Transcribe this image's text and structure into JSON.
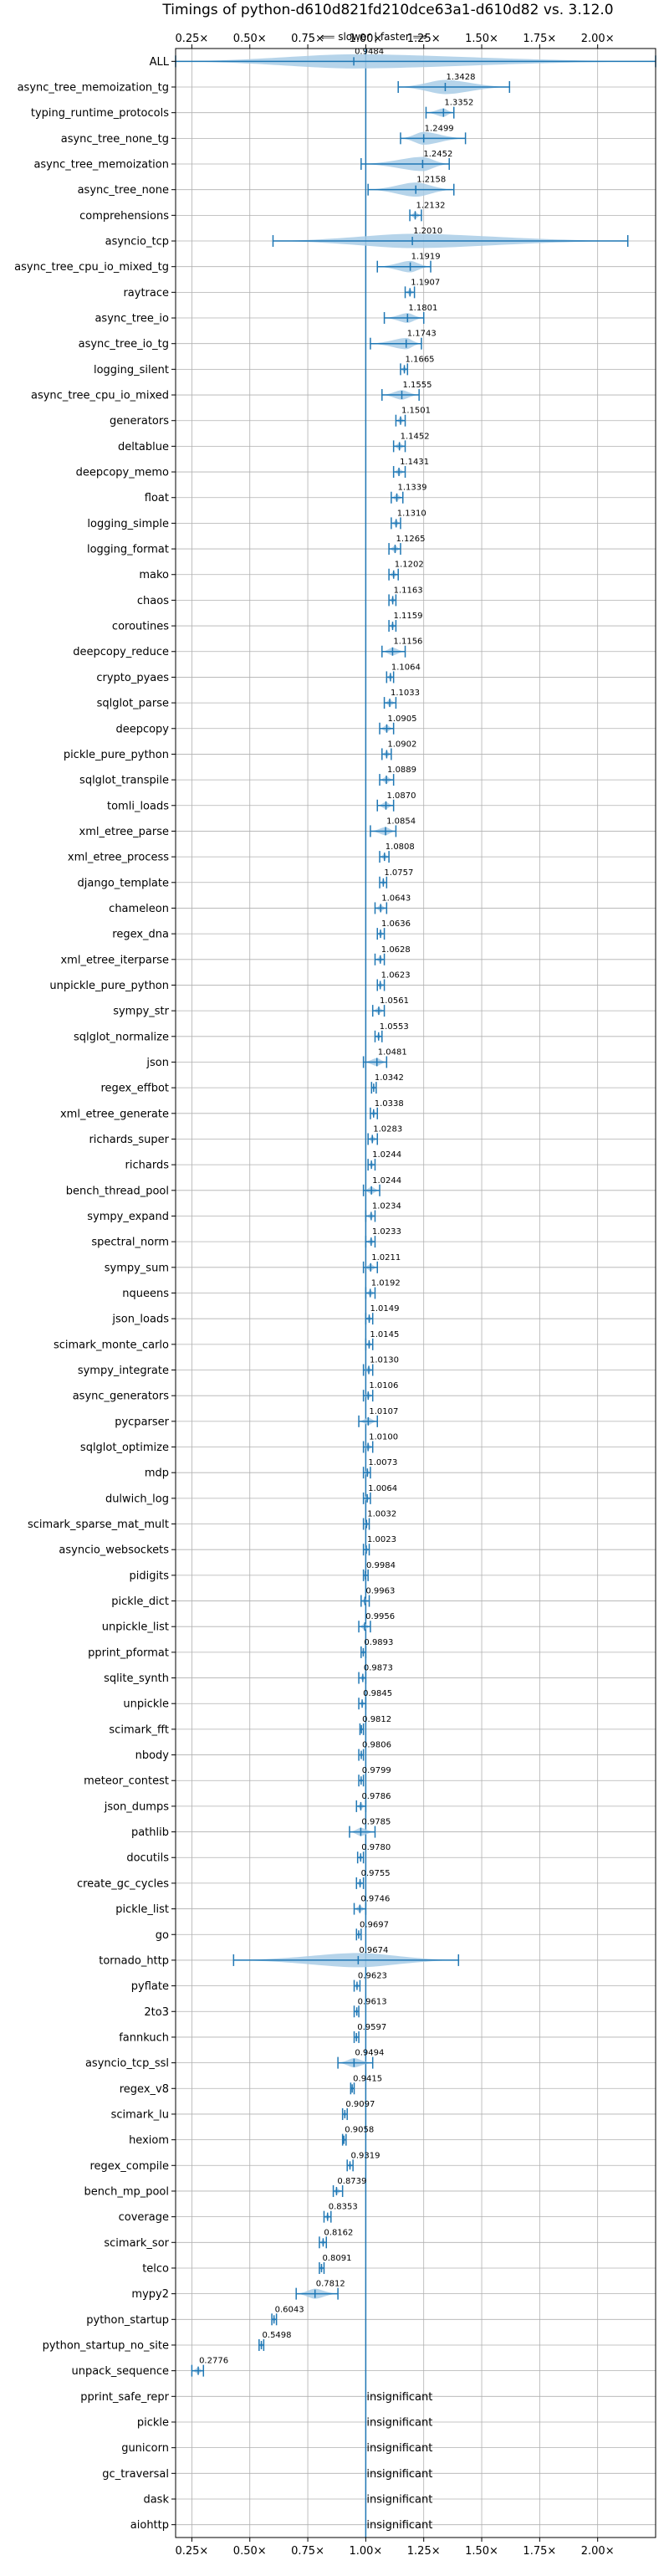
{
  "chart_data": {
    "type": "violin",
    "title": "Timings of python-d610d821fd210dce63a1-d610d82 vs. 3.12.0",
    "direction_label": "⟸ slower | faster ⟹",
    "xlim": [
      0.18,
      2.25
    ],
    "x_ticks": [
      0.25,
      0.5,
      0.75,
      1.0,
      1.25,
      1.5,
      1.75,
      2.0
    ],
    "x_tick_labels": [
      "0.25×",
      "0.50×",
      "0.75×",
      "1.00×",
      "1.25×",
      "1.50×",
      "1.75×",
      "2.00×"
    ],
    "reference_line": 1.0,
    "grid": true,
    "colors": {
      "violin": "#1f77b4",
      "violin_fill": "#a9cce6",
      "outlier": "#d62728"
    },
    "insignificant_text": "insignificant",
    "benchmarks": [
      {
        "name": "ALL",
        "median": 0.9484,
        "min": 0.18,
        "max": 2.25
      },
      {
        "name": "async_tree_memoization_tg",
        "median": 1.3428,
        "min": 1.14,
        "max": 1.62
      },
      {
        "name": "typing_runtime_protocols",
        "median": 1.3352,
        "min": 1.26,
        "max": 1.38
      },
      {
        "name": "async_tree_none_tg",
        "median": 1.2499,
        "min": 1.15,
        "max": 1.43
      },
      {
        "name": "async_tree_memoization",
        "median": 1.2452,
        "min": 0.98,
        "max": 1.36
      },
      {
        "name": "async_tree_none",
        "median": 1.2158,
        "min": 1.01,
        "max": 1.38
      },
      {
        "name": "comprehensions",
        "median": 1.2132,
        "min": 1.19,
        "max": 1.24
      },
      {
        "name": "asyncio_tcp",
        "median": 1.201,
        "min": 0.6,
        "max": 2.13
      },
      {
        "name": "async_tree_cpu_io_mixed_tg",
        "median": 1.1919,
        "min": 1.05,
        "max": 1.28
      },
      {
        "name": "raytrace",
        "median": 1.1907,
        "min": 1.17,
        "max": 1.21
      },
      {
        "name": "async_tree_io",
        "median": 1.1801,
        "min": 1.08,
        "max": 1.25
      },
      {
        "name": "async_tree_io_tg",
        "median": 1.1743,
        "min": 1.02,
        "max": 1.24
      },
      {
        "name": "logging_silent",
        "median": 1.1665,
        "min": 1.15,
        "max": 1.18
      },
      {
        "name": "async_tree_cpu_io_mixed",
        "median": 1.1555,
        "min": 1.07,
        "max": 1.23
      },
      {
        "name": "generators",
        "median": 1.1501,
        "min": 1.13,
        "max": 1.17
      },
      {
        "name": "deltablue",
        "median": 1.1452,
        "min": 1.12,
        "max": 1.17
      },
      {
        "name": "deepcopy_memo",
        "median": 1.1431,
        "min": 1.12,
        "max": 1.17
      },
      {
        "name": "float",
        "median": 1.1339,
        "min": 1.11,
        "max": 1.16
      },
      {
        "name": "logging_simple",
        "median": 1.131,
        "min": 1.11,
        "max": 1.15
      },
      {
        "name": "logging_format",
        "median": 1.1265,
        "min": 1.1,
        "max": 1.15
      },
      {
        "name": "mako",
        "median": 1.1202,
        "min": 1.1,
        "max": 1.14
      },
      {
        "name": "chaos",
        "median": 1.1163,
        "min": 1.1,
        "max": 1.13
      },
      {
        "name": "coroutines",
        "median": 1.1159,
        "min": 1.1,
        "max": 1.13
      },
      {
        "name": "deepcopy_reduce",
        "median": 1.1156,
        "min": 1.07,
        "max": 1.17
      },
      {
        "name": "crypto_pyaes",
        "median": 1.1064,
        "min": 1.09,
        "max": 1.12
      },
      {
        "name": "sqlglot_parse",
        "median": 1.1033,
        "min": 1.08,
        "max": 1.13
      },
      {
        "name": "deepcopy",
        "median": 1.0905,
        "min": 1.06,
        "max": 1.12
      },
      {
        "name": "pickle_pure_python",
        "median": 1.0902,
        "min": 1.07,
        "max": 1.11
      },
      {
        "name": "sqlglot_transpile",
        "median": 1.0889,
        "min": 1.06,
        "max": 1.12
      },
      {
        "name": "tomli_loads",
        "median": 1.087,
        "min": 1.05,
        "max": 1.12
      },
      {
        "name": "xml_etree_parse",
        "median": 1.0854,
        "min": 1.02,
        "max": 1.13
      },
      {
        "name": "xml_etree_process",
        "median": 1.0808,
        "min": 1.06,
        "max": 1.1
      },
      {
        "name": "django_template",
        "median": 1.0757,
        "min": 1.06,
        "max": 1.09
      },
      {
        "name": "chameleon",
        "median": 1.0643,
        "min": 1.04,
        "max": 1.09
      },
      {
        "name": "regex_dna",
        "median": 1.0636,
        "min": 1.05,
        "max": 1.08
      },
      {
        "name": "xml_etree_iterparse",
        "median": 1.0628,
        "min": 1.04,
        "max": 1.08
      },
      {
        "name": "unpickle_pure_python",
        "median": 1.0623,
        "min": 1.05,
        "max": 1.08
      },
      {
        "name": "sympy_str",
        "median": 1.0561,
        "min": 1.03,
        "max": 1.08
      },
      {
        "name": "sqlglot_normalize",
        "median": 1.0553,
        "min": 1.04,
        "max": 1.07
      },
      {
        "name": "json",
        "median": 1.0481,
        "min": 0.99,
        "max": 1.09
      },
      {
        "name": "regex_effbot",
        "median": 1.0342,
        "min": 1.025,
        "max": 1.045
      },
      {
        "name": "xml_etree_generate",
        "median": 1.0338,
        "min": 1.02,
        "max": 1.05
      },
      {
        "name": "richards_super",
        "median": 1.0283,
        "min": 1.01,
        "max": 1.05
      },
      {
        "name": "richards",
        "median": 1.0244,
        "min": 1.01,
        "max": 1.04
      },
      {
        "name": "bench_thread_pool",
        "median": 1.0244,
        "min": 0.99,
        "max": 1.06
      },
      {
        "name": "sympy_expand",
        "median": 1.0234,
        "min": 1.0,
        "max": 1.04
      },
      {
        "name": "spectral_norm",
        "median": 1.0233,
        "min": 1.0,
        "max": 1.04
      },
      {
        "name": "sympy_sum",
        "median": 1.0211,
        "min": 0.99,
        "max": 1.05
      },
      {
        "name": "nqueens",
        "median": 1.0192,
        "min": 1.0,
        "max": 1.04
      },
      {
        "name": "json_loads",
        "median": 1.0149,
        "min": 1.0,
        "max": 1.03
      },
      {
        "name": "scimark_monte_carlo",
        "median": 1.0145,
        "min": 1.0,
        "max": 1.03
      },
      {
        "name": "sympy_integrate",
        "median": 1.013,
        "min": 0.99,
        "max": 1.03
      },
      {
        "name": "async_generators",
        "median": 1.0106,
        "min": 0.99,
        "max": 1.03
      },
      {
        "name": "pycparser",
        "median": 1.0107,
        "min": 0.97,
        "max": 1.05
      },
      {
        "name": "sqlglot_optimize",
        "median": 1.01,
        "min": 0.99,
        "max": 1.03
      },
      {
        "name": "mdp",
        "median": 1.0073,
        "min": 0.99,
        "max": 1.02
      },
      {
        "name": "dulwich_log",
        "median": 1.0064,
        "min": 0.99,
        "max": 1.02
      },
      {
        "name": "scimark_sparse_mat_mult",
        "median": 1.0032,
        "min": 0.99,
        "max": 1.015
      },
      {
        "name": "asyncio_websockets",
        "median": 1.0023,
        "min": 0.99,
        "max": 1.015
      },
      {
        "name": "pidigits",
        "median": 0.9984,
        "min": 0.99,
        "max": 1.01
      },
      {
        "name": "pickle_dict",
        "median": 0.9963,
        "min": 0.98,
        "max": 1.015
      },
      {
        "name": "unpickle_list",
        "median": 0.9956,
        "min": 0.97,
        "max": 1.02
      },
      {
        "name": "pprint_pformat",
        "median": 0.9893,
        "min": 0.98,
        "max": 1.0
      },
      {
        "name": "sqlite_synth",
        "median": 0.9873,
        "min": 0.97,
        "max": 1.0
      },
      {
        "name": "unpickle",
        "median": 0.9845,
        "min": 0.97,
        "max": 1.0
      },
      {
        "name": "scimark_fft",
        "median": 0.9812,
        "min": 0.975,
        "max": 0.99
      },
      {
        "name": "nbody",
        "median": 0.9806,
        "min": 0.97,
        "max": 0.99
      },
      {
        "name": "meteor_contest",
        "median": 0.9799,
        "min": 0.97,
        "max": 0.99
      },
      {
        "name": "json_dumps",
        "median": 0.9786,
        "min": 0.96,
        "max": 1.0
      },
      {
        "name": "pathlib",
        "median": 0.9785,
        "min": 0.93,
        "max": 1.04
      },
      {
        "name": "docutils",
        "median": 0.978,
        "min": 0.965,
        "max": 0.99
      },
      {
        "name": "create_gc_cycles",
        "median": 0.9755,
        "min": 0.96,
        "max": 0.99
      },
      {
        "name": "pickle_list",
        "median": 0.9746,
        "min": 0.95,
        "max": 1.0
      },
      {
        "name": "go",
        "median": 0.9697,
        "min": 0.96,
        "max": 0.98
      },
      {
        "name": "tornado_http",
        "median": 0.9674,
        "min": 0.43,
        "max": 1.4
      },
      {
        "name": "pyflate",
        "median": 0.9623,
        "min": 0.95,
        "max": 0.975
      },
      {
        "name": "2to3",
        "median": 0.9613,
        "min": 0.95,
        "max": 0.97
      },
      {
        "name": "fannkuch",
        "median": 0.9597,
        "min": 0.95,
        "max": 0.97
      },
      {
        "name": "asyncio_tcp_ssl",
        "median": 0.9494,
        "min": 0.88,
        "max": 1.03
      },
      {
        "name": "regex_v8",
        "median": 0.9415,
        "min": 0.935,
        "max": 0.95
      },
      {
        "name": "scimark_lu",
        "median": 0.9097,
        "min": 0.9,
        "max": 0.92
      },
      {
        "name": "hexiom",
        "median": 0.9058,
        "min": 0.9,
        "max": 0.915
      },
      {
        "name": "regex_compile",
        "median": 0.9319,
        "min": 0.92,
        "max": 0.945
      },
      {
        "name": "bench_mp_pool",
        "median": 0.8739,
        "min": 0.86,
        "max": 0.9
      },
      {
        "name": "coverage",
        "median": 0.8353,
        "min": 0.82,
        "max": 0.85
      },
      {
        "name": "scimark_sor",
        "median": 0.8162,
        "min": 0.8,
        "max": 0.83
      },
      {
        "name": "telco",
        "median": 0.8091,
        "min": 0.8,
        "max": 0.82
      },
      {
        "name": "mypy2",
        "median": 0.7812,
        "min": 0.7,
        "max": 0.88
      },
      {
        "name": "python_startup",
        "median": 0.6043,
        "min": 0.595,
        "max": 0.615
      },
      {
        "name": "python_startup_no_site",
        "median": 0.5498,
        "min": 0.54,
        "max": 0.56
      },
      {
        "name": "unpack_sequence",
        "median": 0.2776,
        "min": 0.25,
        "max": 0.3
      },
      {
        "name": "pprint_safe_repr",
        "insignificant": true
      },
      {
        "name": "pickle",
        "insignificant": true
      },
      {
        "name": "gunicorn",
        "insignificant": true
      },
      {
        "name": "gc_traversal",
        "insignificant": true
      },
      {
        "name": "dask",
        "insignificant": true
      },
      {
        "name": "aiohttp",
        "insignificant": true
      }
    ]
  }
}
